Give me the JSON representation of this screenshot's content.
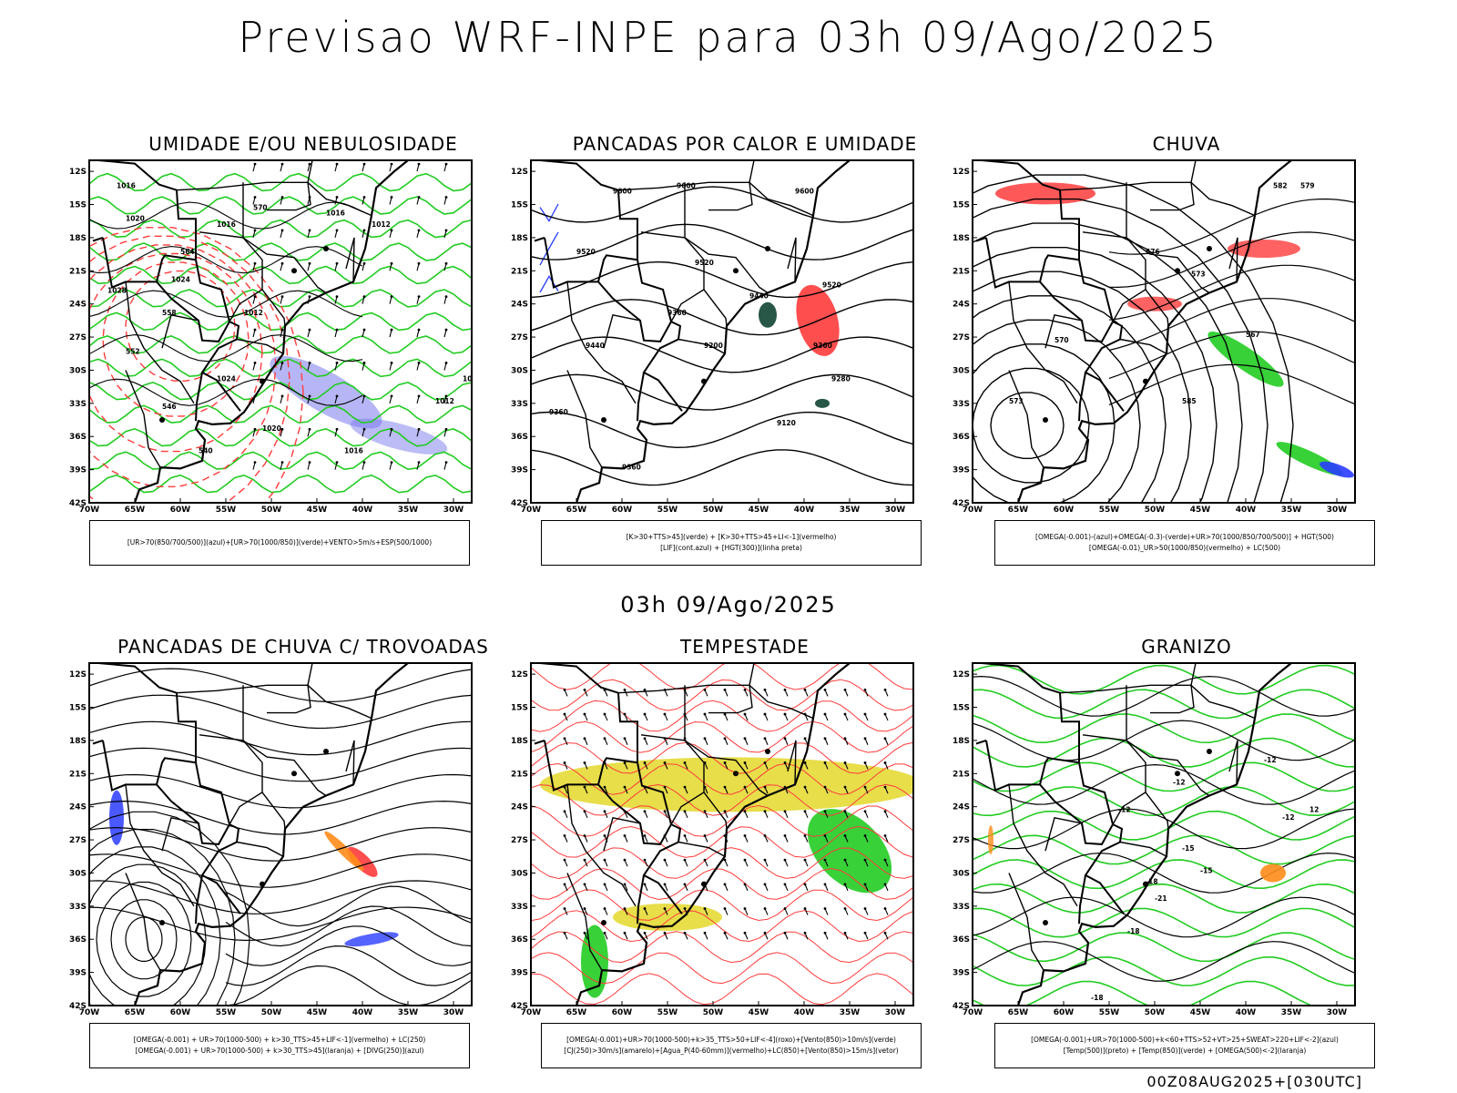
{
  "title": "Previsao WRF-INPE  para 03h 09/Ago/2025",
  "subtitle": "03h 09/Ago/2025",
  "footer": "00Z08AUG2025+[030UTC]",
  "lat_ticks": [
    "12S",
    "15S",
    "18S",
    "21S",
    "24S",
    "27S",
    "30S",
    "33S",
    "36S",
    "39S",
    "42S"
  ],
  "lon_ticks": [
    "70W",
    "65W",
    "60W",
    "55W",
    "50W",
    "45W",
    "40W",
    "35W",
    "30W"
  ],
  "colors": {
    "green": "#22cc22",
    "red": "#ff3b3b",
    "blue": "#2a3cff",
    "orange": "#ff8c1a",
    "yellow": "#e3d82a",
    "darkgreen": "#114433",
    "purple": "#7a7aee"
  },
  "panels": [
    {
      "title": "UMIDADE E/OU NEBULOSIDADE",
      "legend": [
        "[UR>70(850/700/500)](azul)+[UR>70(1000/850)](verde)+VENTO>5m/s+ESP(500/1000)"
      ],
      "labels": [
        "1016",
        "1020",
        "1024",
        "1028",
        "1012",
        "1016",
        "1016",
        "1012",
        "1020",
        "1016",
        "1024",
        "1012",
        "1016",
        "570",
        "564",
        "558",
        "552",
        "546",
        "540"
      ]
    },
    {
      "title": "PANCADAS POR CALOR E UMIDADE",
      "legend": [
        "[K>30+TTS>45](verde) + [K>30+TTS>45+LI<-1](vermelho)",
        "[LIF](cont.azul) + [HGT(300)](linha preta)"
      ],
      "labels": [
        "9600",
        "9600",
        "9600",
        "9520",
        "9520",
        "9440",
        "9360",
        "9200",
        "9520",
        "9360",
        "9280",
        "9120",
        "9360",
        "9440",
        "9360"
      ]
    },
    {
      "title": "CHUVA",
      "legend": [
        "[OMEGA(-0.001)-(azul)+OMEGA(-0.3)-(verde)+UR>70(1000/850/700/500)] + HGT(500)",
        "[OMEGA(-0.01)_UR>50(1000/850)(vermelho) + LC(500)"
      ],
      "labels": [
        "582",
        "579",
        "576",
        "573",
        "570",
        "567",
        "585",
        "573"
      ]
    },
    {
      "title": "PANCADAS DE CHUVA C/ TROVOADAS",
      "legend": [
        "[OMEGA(-0.001) + UR>70(1000-500) + k>30_TTS>45+LIF<-1](vermelho) + LC(250)",
        "[OMEGA(-0.001) + UR>70(1000-500) + k>30_TTS>45](laranja) + [DIVG(250)](azul)"
      ],
      "labels": []
    },
    {
      "title": "TEMPESTADE",
      "legend": [
        "[OMEGA(-0.001)+UR>70(1000-500)+k>35_TTS>50+LIF<-4](roxo)+[Vento(850)>10m/s](verde)",
        "[CJ(250)>30m/s](amarelo)+[Agua_P(40-60mm)](vermelho)+LC(850)+[Vento(850)>15m/s](vetor)"
      ],
      "labels": []
    },
    {
      "title": "GRANIZO",
      "legend": [
        "[OMEGA(-0.001)+UR>70(1000-500)+k<60+TTS>52+VT>25+SWEAT>220+LIF<-2](azul)",
        "[Temp(500)](preto) + [Temp(850)](verde) + [OMEGA(500)<-2](laranja)"
      ],
      "labels": [
        "-12",
        "-12",
        "-12",
        "-15",
        "-18",
        "-18",
        "-18",
        "-21",
        "-12",
        "-15",
        "12"
      ]
    }
  ]
}
